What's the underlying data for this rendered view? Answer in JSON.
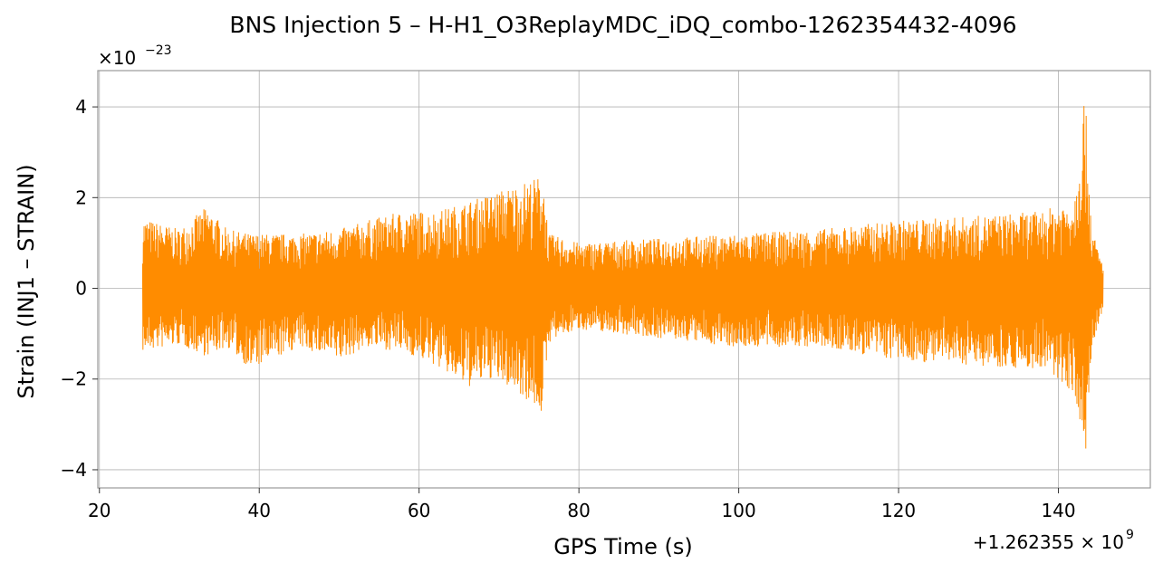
{
  "chart_data": {
    "type": "line",
    "title": "BNS Injection 5 – H-H1_O3ReplayMDC_iDQ_combo-1262354432-4096",
    "xlabel": "GPS Time (s)",
    "ylabel": "Strain (INJ1 – STRAIN)",
    "x_offset_text": "+1.262355 × 10",
    "x_offset_exp": "9",
    "y_scale_text": "×10",
    "y_scale_exp": "−23",
    "xlim": [
      19.8,
      151.5
    ],
    "ylim": [
      -4.4,
      4.8
    ],
    "x_ticks": [
      20,
      40,
      60,
      80,
      100,
      120,
      140
    ],
    "y_ticks": [
      4,
      2,
      0,
      -2,
      -4
    ],
    "x_tick_labels": [
      "20",
      "40",
      "60",
      "80",
      "100",
      "120",
      "140"
    ],
    "y_tick_labels": [
      "4",
      "2",
      "0",
      "−2",
      "−4"
    ],
    "grid": true,
    "color": "#ff8c00",
    "series": [
      {
        "x_start": 25.4,
        "x_end": 145.6,
        "envelope": [
          {
            "x": 25.4,
            "max": 1.55,
            "min": -1.4
          },
          {
            "x": 30,
            "max": 1.3,
            "min": -1.25
          },
          {
            "x": 33.4,
            "max": 1.8,
            "min": -1.5
          },
          {
            "x": 36,
            "max": 1.3,
            "min": -1.3
          },
          {
            "x": 39,
            "max": 1.2,
            "min": -1.8
          },
          {
            "x": 45,
            "max": 1.2,
            "min": -1.3
          },
          {
            "x": 50,
            "max": 1.3,
            "min": -1.6
          },
          {
            "x": 53.5,
            "max": 1.5,
            "min": -1.3
          },
          {
            "x": 58,
            "max": 1.7,
            "min": -1.4
          },
          {
            "x": 62,
            "max": 1.7,
            "min": -1.7
          },
          {
            "x": 66,
            "max": 1.9,
            "min": -2.2
          },
          {
            "x": 69,
            "max": 2.1,
            "min": -2.0
          },
          {
            "x": 72.5,
            "max": 2.3,
            "min": -2.3
          },
          {
            "x": 75.5,
            "max": 2.5,
            "min": -2.8
          },
          {
            "x": 76.2,
            "max": 1.2,
            "min": -1.2
          },
          {
            "x": 80,
            "max": 1.0,
            "min": -0.9
          },
          {
            "x": 90,
            "max": 1.1,
            "min": -1.1
          },
          {
            "x": 100,
            "max": 1.2,
            "min": -1.3
          },
          {
            "x": 110,
            "max": 1.3,
            "min": -1.3
          },
          {
            "x": 120,
            "max": 1.5,
            "min": -1.6
          },
          {
            "x": 130,
            "max": 1.6,
            "min": -1.7
          },
          {
            "x": 138,
            "max": 1.7,
            "min": -1.8
          },
          {
            "x": 142,
            "max": 2.0,
            "min": -2.3
          },
          {
            "x": 143.3,
            "max": 4.4,
            "min": -4.0
          },
          {
            "x": 144.2,
            "max": 1.3,
            "min": -1.4
          },
          {
            "x": 145.6,
            "max": 0.5,
            "min": -0.5
          }
        ]
      }
    ]
  }
}
